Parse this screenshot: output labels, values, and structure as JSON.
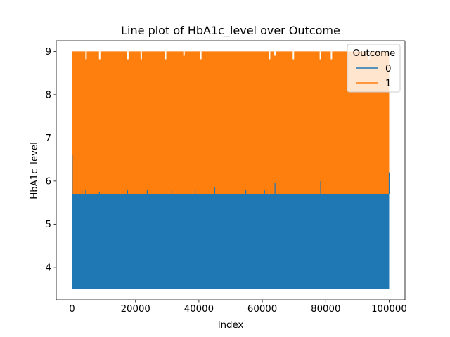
{
  "chart_data": {
    "type": "line",
    "title": "Line plot of HbA1c_level over Outcome",
    "xlabel": "Index",
    "ylabel": "HbA1c_level",
    "xlim": [
      -5000,
      105000
    ],
    "ylim": [
      3.25,
      9.25
    ],
    "xticks": [
      0,
      20000,
      40000,
      60000,
      80000,
      100000
    ],
    "xtick_labels": [
      "0",
      "20000",
      "40000",
      "60000",
      "80000",
      "100000"
    ],
    "yticks": [
      4,
      5,
      6,
      7,
      8,
      9
    ],
    "ytick_labels": [
      "4",
      "5",
      "6",
      "7",
      "8",
      "9"
    ],
    "grid": false,
    "legend": {
      "title": "Outcome",
      "placement": "top-right",
      "entries": [
        "0",
        "1"
      ]
    },
    "series": [
      {
        "name": "0",
        "color": "#1f77b4",
        "x_range": [
          0,
          100000
        ],
        "value_min": 3.5,
        "value_max": 6.6,
        "typical_max": 5.7,
        "values_note": "dense line of ~100000 points oscillating between 3.5 and 5.7 with occasional spikes near 5.8-6.6"
      },
      {
        "name": "1",
        "color": "#ff7f0e",
        "x_range": [
          0,
          100000
        ],
        "value_min": 5.7,
        "value_max": 9.0,
        "values_note": "dense line of ~8500 points oscillating between 5.7 and 9.0"
      }
    ],
    "spikes_0": [
      {
        "x": 50,
        "y": 6.6
      },
      {
        "x": 3100,
        "y": 5.8
      },
      {
        "x": 4300,
        "y": 5.8
      },
      {
        "x": 8600,
        "y": 5.75
      },
      {
        "x": 17500,
        "y": 5.8
      },
      {
        "x": 23700,
        "y": 5.8
      },
      {
        "x": 31500,
        "y": 5.8
      },
      {
        "x": 38800,
        "y": 5.8
      },
      {
        "x": 45000,
        "y": 5.85
      },
      {
        "x": 54800,
        "y": 5.8
      },
      {
        "x": 60700,
        "y": 5.8
      },
      {
        "x": 64000,
        "y": 5.95
      },
      {
        "x": 78400,
        "y": 6.0
      },
      {
        "x": 100000,
        "y": 6.2
      }
    ],
    "dips_1": [
      {
        "x": 4400,
        "y": 8.82
      },
      {
        "x": 8700,
        "y": 8.82
      },
      {
        "x": 17600,
        "y": 8.82
      },
      {
        "x": 21800,
        "y": 8.82
      },
      {
        "x": 29500,
        "y": 8.82
      },
      {
        "x": 35300,
        "y": 8.9
      },
      {
        "x": 40600,
        "y": 8.82
      },
      {
        "x": 62300,
        "y": 8.82
      },
      {
        "x": 64000,
        "y": 8.9
      },
      {
        "x": 69800,
        "y": 8.82
      },
      {
        "x": 78300,
        "y": 8.82
      },
      {
        "x": 81800,
        "y": 8.82
      },
      {
        "x": 93600,
        "y": 8.82
      }
    ],
    "colors": {
      "series_0": "#1f77b4",
      "series_1": "#ff7f0e",
      "axes": "#000000",
      "background": "#ffffff"
    }
  }
}
